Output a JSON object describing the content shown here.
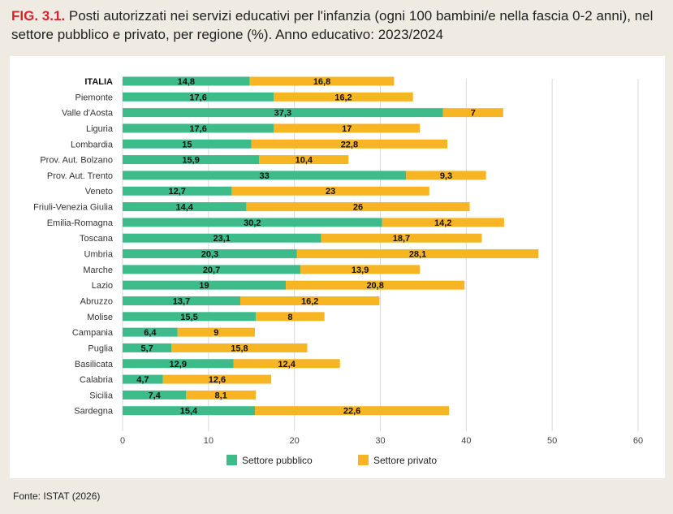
{
  "title": {
    "fig_label": "FIG. 3.1.",
    "text": "Posti autorizzati nei servizi educativi per l'infanzia (ogni 100 bambini/e nella fascia 0-2 anni), nel settore pubblico e privato, per regione (%). Anno educativo: 2023/2024"
  },
  "source": "Fonte: ISTAT (2026)",
  "colors": {
    "pubblico": "#3dbb8a",
    "privato": "#f7b524",
    "grid": "#d9d9d9"
  },
  "chart_data": {
    "type": "bar",
    "orientation": "horizontal",
    "stacked": true,
    "categories": [
      "ITALIA",
      "Piemonte",
      "Valle d'Aosta",
      "Liguria",
      "Lombardia",
      "Prov. Aut. Bolzano",
      "Prov. Aut. Trento",
      "Veneto",
      "Friuli-Venezia Giulia",
      "Emilia-Romagna",
      "Toscana",
      "Umbria",
      "Marche",
      "Lazio",
      "Abruzzo",
      "Molise",
      "Campania",
      "Puglia",
      "Basilicata",
      "Calabria",
      "Sicilia",
      "Sardegna"
    ],
    "series": [
      {
        "name": "Settore pubblico",
        "values": [
          14.8,
          17.6,
          37.3,
          17.6,
          15,
          15.9,
          33,
          12.7,
          14.4,
          30.2,
          23.1,
          20.3,
          20.7,
          19,
          13.7,
          15.5,
          6.4,
          5.7,
          12.9,
          4.7,
          7.4,
          15.4
        ],
        "labels": [
          "14,8",
          "17,6",
          "37,3",
          "17,6",
          "15",
          "15,9",
          "33",
          "12,7",
          "14,4",
          "30,2",
          "23,1",
          "20,3",
          "20,7",
          "19",
          "13,7",
          "15,5",
          "6,4",
          "5,7",
          "12,9",
          "4,7",
          "7,4",
          "15,4"
        ]
      },
      {
        "name": "Settore privato",
        "values": [
          16.8,
          16.2,
          7,
          17,
          22.8,
          10.4,
          9.3,
          23,
          26,
          14.2,
          18.7,
          28.1,
          13.9,
          20.8,
          16.2,
          8,
          9,
          15.8,
          12.4,
          12.6,
          8.1,
          22.6
        ],
        "labels": [
          "16,8",
          "16,2",
          "7",
          "17",
          "22,8",
          "10,4",
          "9,3",
          "23",
          "26",
          "14,2",
          "18,7",
          "28,1",
          "13,9",
          "20,8",
          "16,2",
          "8",
          "9",
          "15,8",
          "12,4",
          "12,6",
          "8,1",
          "22,6"
        ]
      }
    ],
    "x_ticks": [
      "0",
      "10",
      "20",
      "30",
      "40",
      "50",
      "60"
    ],
    "xlim": [
      0,
      60
    ],
    "grid": true,
    "legend_position": "bottom-center",
    "bold_categories": [
      "ITALIA"
    ]
  }
}
